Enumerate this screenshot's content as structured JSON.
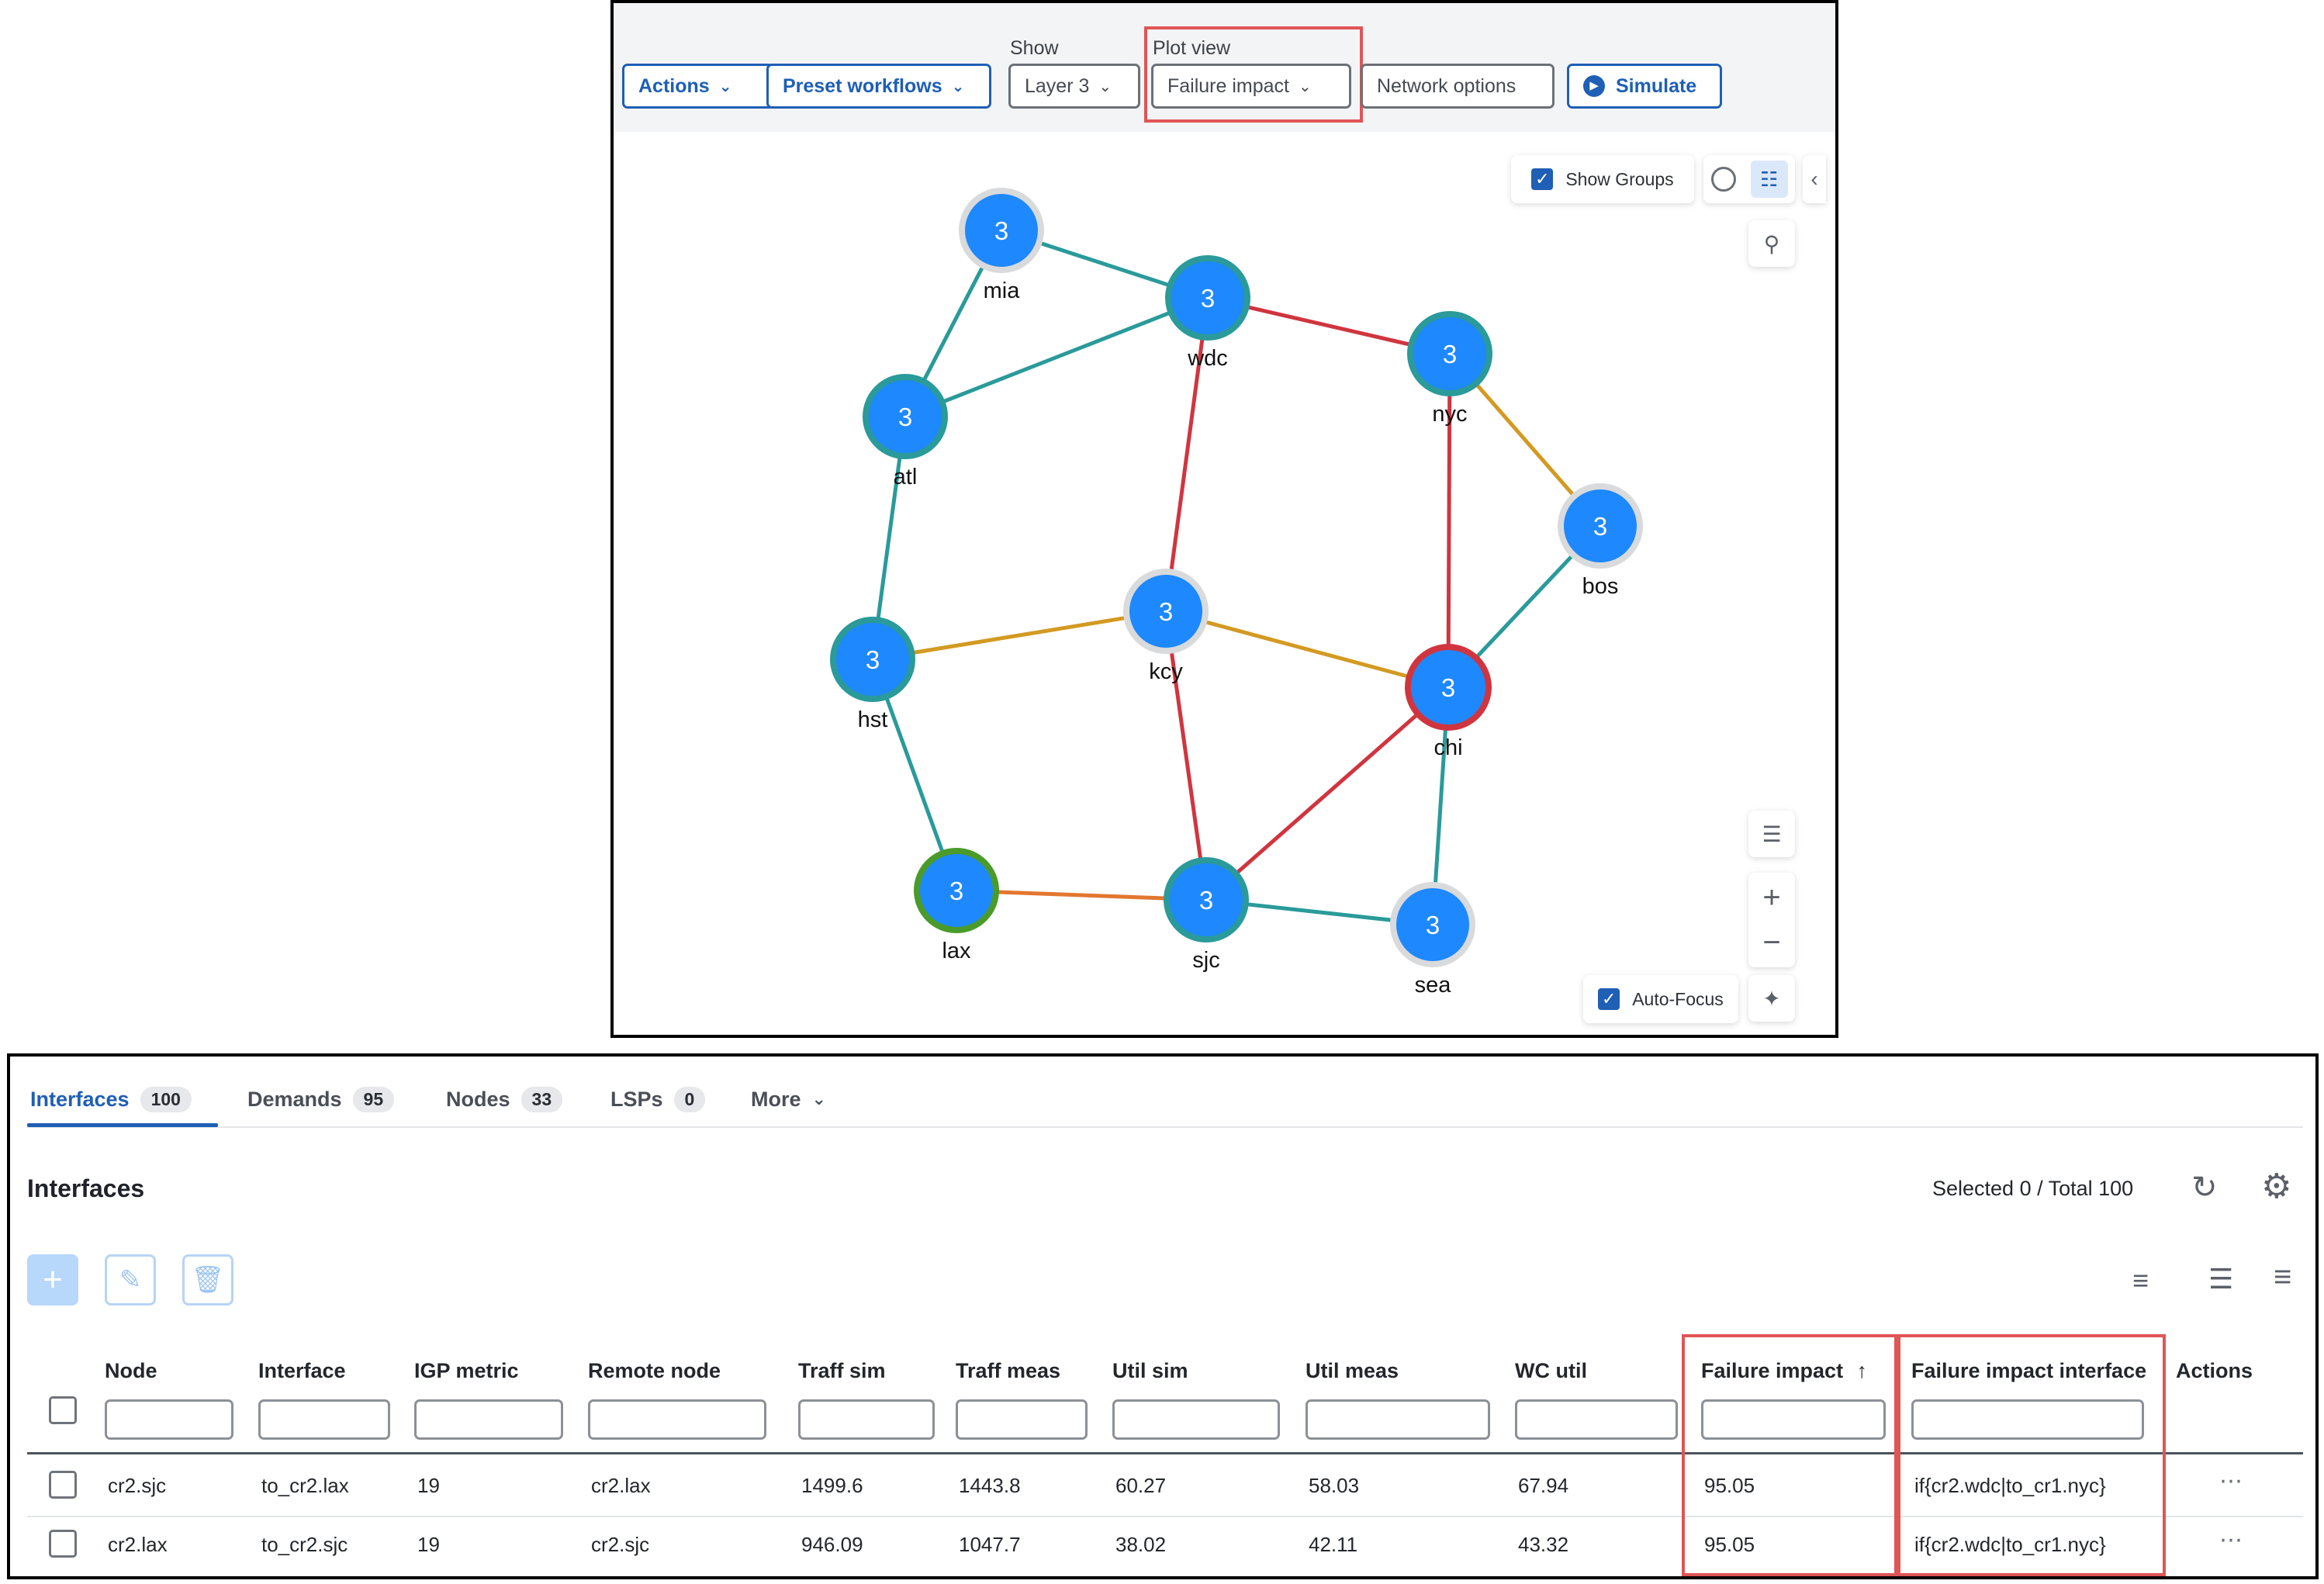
{
  "toolbar": {
    "actions_label": "Actions",
    "preset_label": "Preset workflows",
    "show_label": "Show",
    "show_value": "Layer 3",
    "plot_view_label": "Plot view",
    "plot_view_value": "Failure impact",
    "network_options_label": "Network options",
    "simulate_label": "Simulate"
  },
  "map": {
    "show_groups_label": "Show Groups",
    "auto_focus_label": "Auto-Focus",
    "nodes": [
      {
        "id": "mia",
        "count": "3"
      },
      {
        "id": "wdc",
        "count": "3"
      },
      {
        "id": "nyc",
        "count": "3"
      },
      {
        "id": "atl",
        "count": "3"
      },
      {
        "id": "bos",
        "count": "3"
      },
      {
        "id": "kcy",
        "count": "3"
      },
      {
        "id": "hst",
        "count": "3"
      },
      {
        "id": "chi",
        "count": "3"
      },
      {
        "id": "lax",
        "count": "3"
      },
      {
        "id": "sjc",
        "count": "3"
      },
      {
        "id": "sea",
        "count": "3"
      }
    ],
    "colors": {
      "node_fill": "#1e88ff",
      "teal": "#2a9a9a",
      "red": "#d0353f",
      "gold": "#d39a22",
      "orange": "#e2772f",
      "green": "#4a9b2a",
      "grey_ring": "#d9dadc"
    }
  },
  "tabs": [
    {
      "label": "Interfaces",
      "count": "100"
    },
    {
      "label": "Demands",
      "count": "95"
    },
    {
      "label": "Nodes",
      "count": "33"
    },
    {
      "label": "LSPs",
      "count": "0"
    },
    {
      "label": "More"
    }
  ],
  "table": {
    "title": "Interfaces",
    "selection": "Selected 0 / Total 100",
    "columns": [
      "Node",
      "Interface",
      "IGP metric",
      "Remote node",
      "Traff sim",
      "Traff meas",
      "Util sim",
      "Util meas",
      "WC util",
      "Failure impact",
      "Failure impact interface",
      "Actions"
    ],
    "sort_indicator": "↑",
    "rows": [
      [
        "cr2.sjc",
        "to_cr2.lax",
        "19",
        "cr2.lax",
        "1499.6",
        "1443.8",
        "60.27",
        "58.03",
        "67.94",
        "95.05",
        "if{cr2.wdc|to_cr1.nyc}"
      ],
      [
        "cr2.lax",
        "to_cr2.sjc",
        "19",
        "cr2.sjc",
        "946.09",
        "1047.7",
        "38.02",
        "42.11",
        "43.32",
        "95.05",
        "if{cr2.wdc|to_cr1.nyc}"
      ]
    ]
  }
}
